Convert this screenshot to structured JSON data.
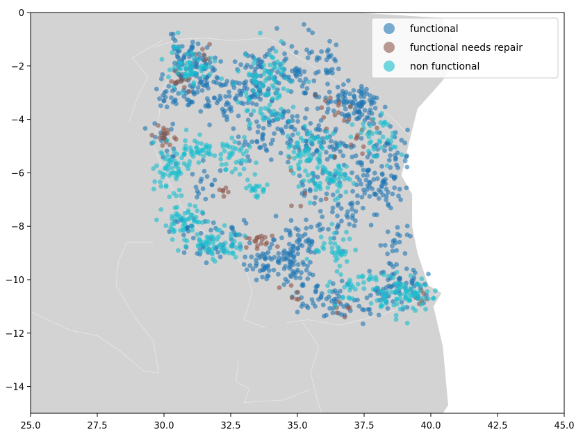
{
  "chart_data": {
    "type": "scatter",
    "title": "",
    "xlabel": "",
    "ylabel": "",
    "xlim": [
      25.0,
      45.0
    ],
    "ylim": [
      -15.0,
      0.0
    ],
    "xticks": [
      25.0,
      27.5,
      30.0,
      32.5,
      35.0,
      37.5,
      40.0,
      42.5,
      45.0
    ],
    "xtick_labels": [
      "25.0",
      "27.5",
      "30.0",
      "32.5",
      "35.0",
      "37.5",
      "40.0",
      "42.5",
      "45.0"
    ],
    "yticks": [
      0,
      -2,
      -4,
      -6,
      -8,
      -10,
      -12,
      -14
    ],
    "ytick_labels": [
      "0",
      "−2",
      "−4",
      "−6",
      "−8",
      "−10",
      "−12",
      "−14"
    ],
    "grid": false,
    "legend_position": "top-right",
    "background_map_color": "#d3d3d3",
    "ocean_color": "#ffffff",
    "land_outline": [
      [
        25.0,
        0.0
      ],
      [
        37.2,
        0.0
      ],
      [
        40.4,
        -0.2
      ],
      [
        41.1,
        -1.6
      ],
      [
        40.4,
        -2.6
      ],
      [
        39.5,
        -3.6
      ],
      [
        39.2,
        -4.8
      ],
      [
        38.9,
        -6.1
      ],
      [
        39.3,
        -6.8
      ],
      [
        39.3,
        -8.0
      ],
      [
        39.5,
        -9.0
      ],
      [
        39.9,
        -10.2
      ],
      [
        40.4,
        -10.5
      ],
      [
        40.1,
        -11.0
      ],
      [
        40.45,
        -12.5
      ],
      [
        40.55,
        -13.6
      ],
      [
        40.65,
        -14.7
      ],
      [
        40.45,
        -15.0
      ],
      [
        25.0,
        -15.0
      ]
    ],
    "borders": [
      [
        [
          29.6,
          -1.3
        ],
        [
          30.6,
          -1.0
        ],
        [
          31.5,
          -0.95
        ],
        [
          32.5,
          -1.05
        ],
        [
          33.9,
          -0.95
        ],
        [
          37.0,
          -2.9
        ],
        [
          38.5,
          -3.9
        ],
        [
          39.2,
          -4.6
        ]
      ],
      [
        [
          30.2,
          -2.4
        ],
        [
          29.9,
          -3.0
        ],
        [
          29.8,
          -4.0
        ],
        [
          29.6,
          -5.0
        ],
        [
          30.2,
          -6.4
        ],
        [
          30.7,
          -7.3
        ],
        [
          31.2,
          -8.0
        ],
        [
          32.6,
          -9.0
        ],
        [
          33.1,
          -9.7
        ],
        [
          33.3,
          -10.5
        ],
        [
          33.0,
          -11.5
        ],
        [
          33.8,
          -11.8
        ]
      ],
      [
        [
          34.6,
          -11.6
        ],
        [
          35.4,
          -11.5
        ],
        [
          36.6,
          -11.7
        ],
        [
          38.2,
          -11.3
        ],
        [
          39.5,
          -10.8
        ],
        [
          40.4,
          -10.5
        ]
      ],
      [
        [
          25.0,
          -11.2
        ],
        [
          26.5,
          -11.9
        ],
        [
          27.5,
          -12.1
        ],
        [
          28.4,
          -12.7
        ],
        [
          29.2,
          -13.4
        ],
        [
          29.8,
          -13.5
        ]
      ],
      [
        [
          29.6,
          -8.6
        ],
        [
          28.6,
          -8.6
        ],
        [
          28.3,
          -9.3
        ],
        [
          28.2,
          -10.2
        ],
        [
          28.9,
          -11.4
        ],
        [
          29.6,
          -12.3
        ],
        [
          29.8,
          -13.5
        ]
      ],
      [
        [
          32.8,
          -13.0
        ],
        [
          32.7,
          -13.8
        ],
        [
          33.2,
          -14.1
        ],
        [
          33.0,
          -14.6
        ],
        [
          34.5,
          -14.5
        ],
        [
          35.5,
          -14.1
        ]
      ],
      [
        [
          35.2,
          -11.6
        ],
        [
          35.8,
          -12.5
        ],
        [
          35.5,
          -13.5
        ],
        [
          35.8,
          -14.7
        ],
        [
          35.9,
          -15.0
        ]
      ],
      [
        [
          30.0,
          -1.0
        ],
        [
          28.8,
          -1.7
        ],
        [
          29.4,
          -2.4
        ],
        [
          29.0,
          -3.2
        ],
        [
          28.7,
          -4.1
        ]
      ]
    ],
    "series": [
      {
        "name": "functional",
        "color": "#1f77b4",
        "opacity": 0.6,
        "n": 1100,
        "seed": 11,
        "clusters": [
          [
            30.8,
            -1.6,
            0.35,
            0.35,
            5
          ],
          [
            31.5,
            -2.3,
            0.4,
            0.4,
            4
          ],
          [
            30.5,
            -3.0,
            0.4,
            0.35,
            5
          ],
          [
            32.0,
            -3.2,
            0.5,
            0.45,
            5
          ],
          [
            33.2,
            -3.0,
            0.5,
            0.5,
            6
          ],
          [
            34.0,
            -2.0,
            0.6,
            0.45,
            5
          ],
          [
            35.3,
            -2.4,
            0.5,
            0.45,
            4
          ],
          [
            36.7,
            -3.3,
            0.5,
            0.4,
            6
          ],
          [
            37.4,
            -3.4,
            0.35,
            0.3,
            5
          ],
          [
            34.5,
            -4.0,
            0.5,
            0.4,
            4
          ],
          [
            35.5,
            -4.6,
            0.5,
            0.5,
            4
          ],
          [
            33.5,
            -4.8,
            0.5,
            0.4,
            3
          ],
          [
            36.5,
            -5.0,
            0.45,
            0.45,
            3
          ],
          [
            38.5,
            -5.2,
            0.4,
            0.5,
            4
          ],
          [
            37.5,
            -6.0,
            0.4,
            0.5,
            4
          ],
          [
            35.8,
            -6.4,
            0.45,
            0.45,
            3
          ],
          [
            38.2,
            -6.8,
            0.35,
            0.45,
            4
          ],
          [
            36.8,
            -7.5,
            0.35,
            0.4,
            3
          ],
          [
            35.4,
            -8.4,
            0.5,
            0.45,
            5
          ],
          [
            34.5,
            -9.2,
            0.4,
            0.35,
            5
          ],
          [
            33.7,
            -9.4,
            0.4,
            0.3,
            4
          ],
          [
            35.3,
            -10.3,
            0.6,
            0.4,
            4
          ],
          [
            36.5,
            -10.9,
            0.6,
            0.35,
            4
          ],
          [
            38.4,
            -10.3,
            0.5,
            0.4,
            4
          ],
          [
            39.3,
            -10.1,
            0.4,
            0.5,
            3
          ],
          [
            31.4,
            -6.5,
            0.35,
            0.45,
            2
          ],
          [
            30.9,
            -8.0,
            0.3,
            0.3,
            2
          ],
          [
            29.9,
            -4.7,
            0.35,
            0.35,
            2
          ],
          [
            32.6,
            -8.2,
            0.4,
            0.3,
            2
          ],
          [
            31.7,
            -9.0,
            0.45,
            0.3,
            2
          ],
          [
            38.6,
            -8.6,
            0.3,
            0.4,
            2
          ],
          [
            36.0,
            -1.6,
            0.4,
            0.3,
            2
          ]
        ]
      },
      {
        "name": "functional needs repair",
        "color": "#8c564b",
        "opacity": 0.6,
        "n": 110,
        "seed": 23,
        "clusters": [
          [
            29.9,
            -4.6,
            0.25,
            0.25,
            3
          ],
          [
            30.6,
            -2.6,
            0.2,
            0.2,
            2
          ],
          [
            33.5,
            -8.6,
            0.35,
            0.2,
            3
          ],
          [
            32.3,
            -6.7,
            0.15,
            0.1,
            1
          ],
          [
            36.5,
            -3.6,
            0.45,
            0.35,
            2
          ],
          [
            37.3,
            -4.5,
            0.35,
            0.4,
            2
          ],
          [
            39.5,
            -10.7,
            0.25,
            0.2,
            1
          ],
          [
            37.0,
            -10.9,
            0.4,
            0.3,
            1
          ],
          [
            35.5,
            -6.5,
            0.6,
            0.6,
            1
          ],
          [
            31.6,
            -1.5,
            0.3,
            0.3,
            1
          ],
          [
            34.8,
            -10.5,
            0.3,
            0.3,
            1
          ]
        ]
      },
      {
        "name": "non functional",
        "color": "#17becf",
        "opacity": 0.6,
        "n": 700,
        "seed": 37,
        "clusters": [
          [
            31.0,
            -2.0,
            0.4,
            0.4,
            3
          ],
          [
            30.3,
            -5.8,
            0.35,
            0.5,
            3
          ],
          [
            30.8,
            -7.8,
            0.4,
            0.4,
            3
          ],
          [
            32.0,
            -8.7,
            0.5,
            0.25,
            3
          ],
          [
            34.0,
            -2.3,
            0.5,
            0.5,
            3
          ],
          [
            35.4,
            -5.2,
            0.5,
            0.5,
            3
          ],
          [
            36.2,
            -6.2,
            0.5,
            0.4,
            3
          ],
          [
            38.0,
            -4.6,
            0.4,
            0.4,
            2
          ],
          [
            39.0,
            -10.6,
            0.5,
            0.35,
            4
          ],
          [
            37.5,
            -10.3,
            0.6,
            0.4,
            2
          ],
          [
            33.7,
            -3.5,
            0.5,
            0.4,
            2
          ],
          [
            32.6,
            -5.4,
            0.4,
            0.4,
            2
          ],
          [
            31.2,
            -5.1,
            0.4,
            0.3,
            2
          ],
          [
            36.4,
            -8.8,
            0.4,
            0.4,
            2
          ],
          [
            33.3,
            -6.6,
            0.25,
            0.15,
            1
          ]
        ]
      }
    ]
  }
}
